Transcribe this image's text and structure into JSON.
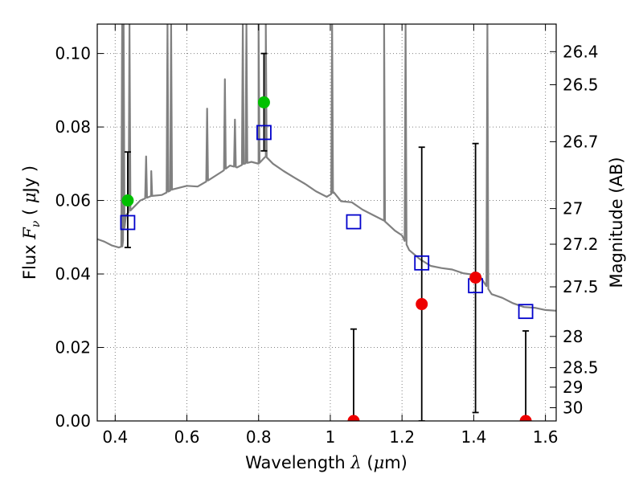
{
  "chart_data": {
    "type": "scatter",
    "xlabel": "Wavelength  λ (μm)",
    "ylabel_left": "Flux  Fν  ( μJy )",
    "ylabel_right": "Magnitude (AB)",
    "xlim": [
      0.35,
      1.63
    ],
    "ylim": [
      0.0,
      0.108
    ],
    "x_ticks": [
      0.4,
      0.6,
      0.8,
      1.0,
      1.2,
      1.4,
      1.6
    ],
    "x_tick_labels": [
      "0.4",
      "0.6",
      "0.8",
      "1",
      "1.2",
      "1.4",
      "1.6"
    ],
    "y_ticks": [
      0.0,
      0.02,
      0.04,
      0.06,
      0.08,
      0.1
    ],
    "y_tick_labels": [
      "0.00",
      "0.02",
      "0.04",
      "0.06",
      "0.08",
      "0.10"
    ],
    "right_ticks": [
      {
        "label": "26.4",
        "flux": 0.1005
      },
      {
        "label": "26.5",
        "flux": 0.0915
      },
      {
        "label": "26.7",
        "flux": 0.076
      },
      {
        "label": "27",
        "flux": 0.0578
      },
      {
        "label": "27.2",
        "flux": 0.0481
      },
      {
        "label": "27.5",
        "flux": 0.0365
      },
      {
        "label": "28",
        "flux": 0.023
      },
      {
        "label": "28.5",
        "flux": 0.0145
      },
      {
        "label": "29",
        "flux": 0.0092
      },
      {
        "label": "30",
        "flux": 0.0036
      }
    ],
    "grid": true,
    "colors": {
      "spectrum": "#808080",
      "detections_optical": "#00c000",
      "detections_nir": "#ee0000",
      "model": "#0000cc",
      "errorbar": "#000000",
      "grid": "#808080"
    },
    "spectrum": {
      "continuum": [
        [
          0.35,
          0.0495
        ],
        [
          0.37,
          0.0488
        ],
        [
          0.39,
          0.0478
        ],
        [
          0.41,
          0.0472
        ],
        [
          0.42,
          0.0475
        ],
        [
          0.43,
          0.056
        ],
        [
          0.45,
          0.058
        ],
        [
          0.47,
          0.06
        ],
        [
          0.5,
          0.0612
        ],
        [
          0.53,
          0.0615
        ],
        [
          0.56,
          0.063
        ],
        [
          0.6,
          0.064
        ],
        [
          0.63,
          0.0638
        ],
        [
          0.66,
          0.0655
        ],
        [
          0.7,
          0.068
        ],
        [
          0.72,
          0.0695
        ],
        [
          0.74,
          0.069
        ],
        [
          0.76,
          0.07
        ],
        [
          0.78,
          0.0705
        ],
        [
          0.8,
          0.07
        ],
        [
          0.82,
          0.072
        ],
        [
          0.84,
          0.07
        ],
        [
          0.87,
          0.068
        ],
        [
          0.9,
          0.0662
        ],
        [
          0.93,
          0.0645
        ],
        [
          0.96,
          0.0625
        ],
        [
          0.99,
          0.061
        ],
        [
          1.01,
          0.0622
        ],
        [
          1.03,
          0.0598
        ],
        [
          1.06,
          0.0595
        ],
        [
          1.09,
          0.0575
        ],
        [
          1.12,
          0.056
        ],
        [
          1.15,
          0.0545
        ],
        [
          1.18,
          0.0518
        ],
        [
          1.2,
          0.0505
        ],
        [
          1.22,
          0.0465
        ],
        [
          1.25,
          0.044
        ],
        [
          1.28,
          0.0422
        ],
        [
          1.31,
          0.0416
        ],
        [
          1.34,
          0.0412
        ],
        [
          1.37,
          0.0402
        ],
        [
          1.4,
          0.0398
        ],
        [
          1.42,
          0.039
        ],
        [
          1.45,
          0.0345
        ],
        [
          1.48,
          0.0335
        ],
        [
          1.51,
          0.032
        ],
        [
          1.54,
          0.031
        ],
        [
          1.57,
          0.0308
        ],
        [
          1.6,
          0.0302
        ],
        [
          1.63,
          0.03
        ]
      ],
      "emission_lines": [
        {
          "x": 0.4195,
          "peak": 0.108
        },
        {
          "x": 0.4235,
          "peak": 0.108
        },
        {
          "x": 0.44,
          "peak": 0.108
        },
        {
          "x": 0.4862,
          "peak": 0.072
        },
        {
          "x": 0.5007,
          "peak": 0.068
        },
        {
          "x": 0.546,
          "peak": 0.108
        },
        {
          "x": 0.556,
          "peak": 0.108
        },
        {
          "x": 0.6564,
          "peak": 0.085
        },
        {
          "x": 0.706,
          "peak": 0.093
        },
        {
          "x": 0.734,
          "peak": 0.082
        },
        {
          "x": 0.756,
          "peak": 0.108
        },
        {
          "x": 0.766,
          "peak": 0.108
        },
        {
          "x": 0.8,
          "peak": 0.108
        },
        {
          "x": 0.82,
          "peak": 0.108
        },
        {
          "x": 1.005,
          "peak": 0.108
        },
        {
          "x": 1.15,
          "peak": 0.108
        },
        {
          "x": 1.21,
          "peak": 0.108
        },
        {
          "x": 1.438,
          "peak": 0.108
        }
      ]
    },
    "model_points": [
      {
        "x": 0.435,
        "y": 0.054
      },
      {
        "x": 0.815,
        "y": 0.0785
      },
      {
        "x": 1.065,
        "y": 0.0542
      },
      {
        "x": 1.255,
        "y": 0.043
      },
      {
        "x": 1.405,
        "y": 0.0368
      },
      {
        "x": 1.545,
        "y": 0.0298
      }
    ],
    "detections": [
      {
        "x": 0.435,
        "y": 0.06,
        "err_low": 0.0472,
        "err_high": 0.0732,
        "color": "#00c000"
      },
      {
        "x": 0.815,
        "y": 0.0867,
        "err_low": 0.0735,
        "err_high": 0.1,
        "color": "#00c000"
      },
      {
        "x": 1.065,
        "y": 0.0,
        "err_low": 0.0,
        "err_high": 0.025,
        "color": "#ee0000"
      },
      {
        "x": 1.255,
        "y": 0.0318,
        "err_low": 0.0,
        "err_high": 0.0745,
        "color": "#ee0000"
      },
      {
        "x": 1.405,
        "y": 0.039,
        "err_low": 0.0023,
        "err_high": 0.0755,
        "color": "#ee0000"
      },
      {
        "x": 1.545,
        "y": 0.0,
        "err_low": 0.0,
        "err_high": 0.0245,
        "color": "#ee0000"
      }
    ]
  }
}
